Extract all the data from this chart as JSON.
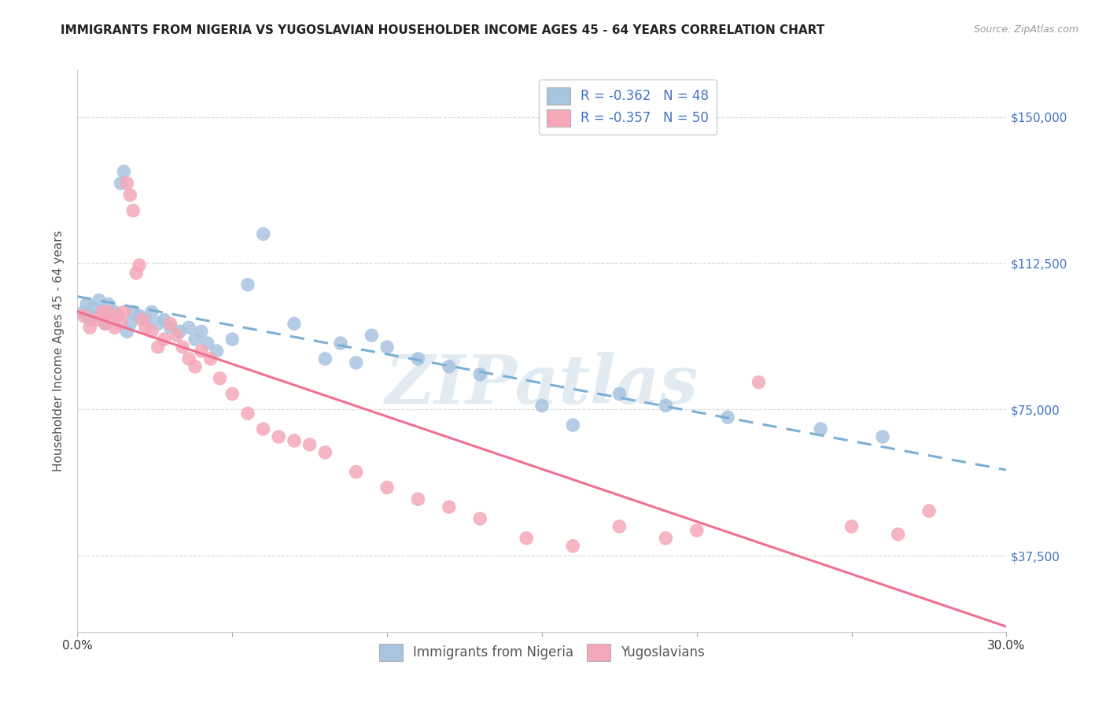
{
  "title": "IMMIGRANTS FROM NIGERIA VS YUGOSLAVIAN HOUSEHOLDER INCOME AGES 45 - 64 YEARS CORRELATION CHART",
  "source": "Source: ZipAtlas.com",
  "ylabel": "Householder Income Ages 45 - 64 years",
  "ytick_labels": [
    "$150,000",
    "$112,500",
    "$75,000",
    "$37,500"
  ],
  "ytick_values": [
    150000,
    112500,
    75000,
    37500
  ],
  "xlim": [
    0.0,
    0.3
  ],
  "ylim": [
    18000,
    162000
  ],
  "legend_nigeria": "R = -0.362   N = 48",
  "legend_yugo": "R = -0.357   N = 50",
  "nigeria_color": "#a8c4e0",
  "yugo_color": "#f4a8b8",
  "nigeria_line_color": "#7bafd4",
  "nigeria_line_dash": [
    6,
    4
  ],
  "yugo_line_color": "#f07090",
  "watermark": "ZIPatlas",
  "background_color": "#ffffff",
  "grid_color": "#d8d8d8",
  "title_fontsize": 11,
  "source_fontsize": 9,
  "nigeria_x": [
    0.002,
    0.003,
    0.004,
    0.005,
    0.006,
    0.007,
    0.008,
    0.009,
    0.01,
    0.011,
    0.012,
    0.013,
    0.014,
    0.015,
    0.016,
    0.017,
    0.018,
    0.02,
    0.022,
    0.024,
    0.026,
    0.028,
    0.03,
    0.033,
    0.036,
    0.038,
    0.04,
    0.042,
    0.045,
    0.05,
    0.055,
    0.06,
    0.07,
    0.08,
    0.085,
    0.09,
    0.095,
    0.1,
    0.11,
    0.12,
    0.13,
    0.15,
    0.16,
    0.175,
    0.19,
    0.21,
    0.24,
    0.26
  ],
  "nigeria_y": [
    100000,
    102000,
    98000,
    101000,
    99000,
    103000,
    100000,
    97000,
    102000,
    98000,
    100000,
    99000,
    133000,
    136000,
    95000,
    97000,
    100000,
    99000,
    98000,
    100000,
    97000,
    98000,
    96000,
    95000,
    96000,
    93000,
    95000,
    92000,
    90000,
    93000,
    107000,
    120000,
    97000,
    88000,
    92000,
    87000,
    94000,
    91000,
    88000,
    86000,
    84000,
    76000,
    71000,
    79000,
    76000,
    73000,
    70000,
    68000
  ],
  "yugo_x": [
    0.002,
    0.004,
    0.006,
    0.008,
    0.009,
    0.01,
    0.011,
    0.012,
    0.013,
    0.014,
    0.015,
    0.016,
    0.017,
    0.018,
    0.019,
    0.02,
    0.021,
    0.022,
    0.024,
    0.026,
    0.028,
    0.03,
    0.032,
    0.034,
    0.036,
    0.038,
    0.04,
    0.043,
    0.046,
    0.05,
    0.055,
    0.06,
    0.065,
    0.07,
    0.075,
    0.08,
    0.09,
    0.1,
    0.11,
    0.12,
    0.13,
    0.145,
    0.16,
    0.175,
    0.19,
    0.2,
    0.22,
    0.25,
    0.265,
    0.275
  ],
  "yugo_y": [
    99000,
    96000,
    98000,
    100000,
    97000,
    100000,
    98000,
    96000,
    99000,
    97000,
    100000,
    133000,
    130000,
    126000,
    110000,
    112000,
    98000,
    96000,
    95000,
    91000,
    93000,
    97000,
    94000,
    91000,
    88000,
    86000,
    90000,
    88000,
    83000,
    79000,
    74000,
    70000,
    68000,
    67000,
    66000,
    64000,
    59000,
    55000,
    52000,
    50000,
    47000,
    42000,
    40000,
    45000,
    42000,
    44000,
    82000,
    45000,
    43000,
    49000
  ]
}
